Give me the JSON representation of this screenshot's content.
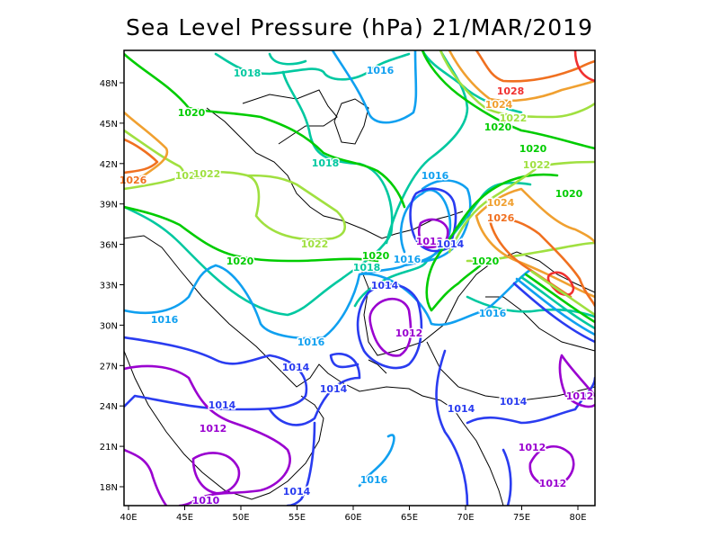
{
  "title": "Sea Level Pressure (hPa) 21/MAR/2019",
  "x_ticks": [
    "40E",
    "45E",
    "50E",
    "55E",
    "60E",
    "65E",
    "70E",
    "75E",
    "80E"
  ],
  "y_ticks": [
    "48N",
    "45N",
    "42N",
    "39N",
    "36N",
    "33N",
    "30N",
    "27N",
    "24N",
    "21N",
    "18N"
  ],
  "level_colors": {
    "1010": "#8c00d8",
    "1012": "#9a00d0",
    "1014": "#2a3cf0",
    "1016": "#10a0f0",
    "1018": "#00c8a0",
    "1020": "#00cc00",
    "1022": "#a0e040",
    "1024": "#f0a030",
    "1026": "#f07020",
    "1028": "#f03030"
  },
  "contour_labels": [
    "1018",
    "1016",
    "1020",
    "1018",
    "1028",
    "1024",
    "1022",
    "1020",
    "1020",
    "1022",
    "1020",
    "1016",
    "1024",
    "1026",
    "1012",
    "1014",
    "1020",
    "1018",
    "1016",
    "1020",
    "1014",
    "1012",
    "1016",
    "1016",
    "1016",
    "1020",
    "1022",
    "1022",
    "1022",
    "1026",
    "1014",
    "1014",
    "1014",
    "1014",
    "1014",
    "1012",
    "1012",
    "1012",
    "1012",
    "1016",
    "1014",
    "1010"
  ]
}
